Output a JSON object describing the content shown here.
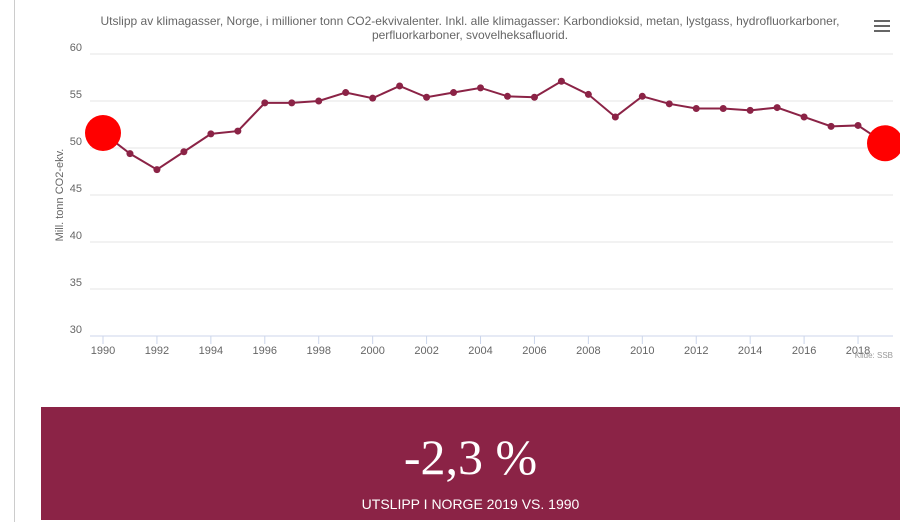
{
  "chart_data": {
    "type": "line",
    "title": "Utslipp av klimagasser, Norge, i millioner tonn CO2-ekvivalenter. Inkl. alle klimagasser: Karbondioksid, metan, lystgass, hydrofluorkarboner, perfluorkarboner, svovelheksafluorid.",
    "y_label": "Mill. tonn CO2-ekv.",
    "source": "Kilde: SSB",
    "x": [
      1990,
      1991,
      1992,
      1993,
      1994,
      1995,
      1996,
      1997,
      1998,
      1999,
      2000,
      2001,
      2002,
      2003,
      2004,
      2005,
      2006,
      2007,
      2008,
      2009,
      2010,
      2011,
      2012,
      2013,
      2014,
      2015,
      2016,
      2017,
      2018,
      2019
    ],
    "series": [
      {
        "color": "#8b2346",
        "values": [
          51.6,
          49.4,
          47.7,
          49.6,
          51.5,
          51.8,
          54.8,
          54.8,
          55.0,
          55.9,
          55.3,
          56.6,
          55.4,
          55.9,
          56.4,
          55.5,
          55.4,
          57.1,
          55.7,
          53.3,
          55.5,
          54.7,
          54.2,
          54.2,
          54.0,
          54.3,
          53.3,
          52.3,
          52.4,
          50.5
        ]
      }
    ],
    "highlight": [
      1990,
      2019
    ],
    "highlight_color": "#ff0000",
    "xlim": [
      1990,
      2019
    ],
    "xticks": [
      1990,
      1992,
      1994,
      1996,
      1998,
      2000,
      2002,
      2004,
      2006,
      2008,
      2010,
      2012,
      2014,
      2016,
      2018
    ],
    "ylim": [
      30,
      60
    ],
    "yticks": [
      30,
      35,
      40,
      45,
      50,
      55,
      60
    ],
    "grid": true
  },
  "banner": {
    "value": "-2,3 %",
    "caption": "UTSLIPP I NORGE 2019 VS. 1990"
  }
}
